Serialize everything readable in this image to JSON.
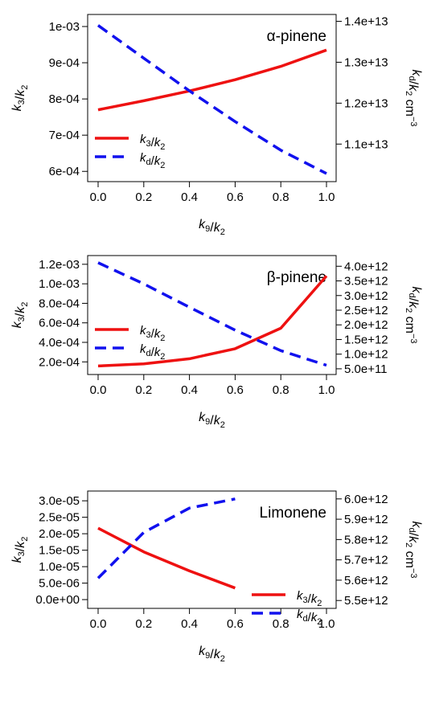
{
  "chart_data": [
    {
      "type": "line",
      "title": "α-pinene",
      "xlabel": "k9/k2",
      "ylabel": "k3/k2",
      "y2label": "kd/k2 cm−3",
      "x": [
        0.0,
        0.2,
        0.4,
        0.6,
        0.8,
        1.0
      ],
      "xlim": [
        0,
        1
      ],
      "xticks": [
        "0.0",
        "0.2",
        "0.4",
        "0.6",
        "0.8",
        "1.0"
      ],
      "ylim": [
        0.000585,
        0.00102
      ],
      "yticks": [
        0.0006,
        0.0007,
        0.0008,
        0.0009,
        0.001
      ],
      "yticklabels": [
        "6e-04",
        "7e-04",
        "8e-04",
        "9e-04",
        "1e-03"
      ],
      "y2lim": [
        10200000000000.0,
        14050000000000.0
      ],
      "y2ticks": [
        11000000000000.0,
        12000000000000.0,
        13000000000000.0,
        14000000000000.0
      ],
      "y2ticklabels": [
        "1.1e+13",
        "1.2e+13",
        "1.3e+13",
        "1.4e+13"
      ],
      "legend_loc": "bottom-left",
      "series": [
        {
          "name": "k3/k2",
          "axis": "left",
          "color": "#ee1111",
          "dash": "solid",
          "values": [
            0.00077,
            0.000795,
            0.000822,
            0.000853,
            0.00089,
            0.000935
          ]
        },
        {
          "name": "kd/k2",
          "axis": "right",
          "color": "#1111ee",
          "dash": "dashed",
          "values": [
            13900000000000.0,
            13100000000000.0,
            12300000000000.0,
            11550000000000.0,
            10850000000000.0,
            10280000000000.0
          ]
        }
      ]
    },
    {
      "type": "line",
      "title": "β-pinene",
      "xlabel": "k9/k2",
      "ylabel": "k3/k2",
      "y2label": "kd/k2 cm−3",
      "x": [
        0.0,
        0.2,
        0.4,
        0.6,
        0.8,
        1.0
      ],
      "xlim": [
        0,
        1
      ],
      "xticks": [
        "0.0",
        "0.2",
        "0.4",
        "0.6",
        "0.8",
        "1.0"
      ],
      "ylim": [
        0.00012,
        0.00124
      ],
      "yticks": [
        0.0002,
        0.0004,
        0.0006,
        0.0008,
        0.001,
        0.0012
      ],
      "yticklabels": [
        "2.0e-04",
        "4.0e-04",
        "6.0e-04",
        "8.0e-04",
        "1.0e-03",
        "1.2e-03"
      ],
      "y2lim": [
        470000000000.0,
        4200000000000.0
      ],
      "y2ticks": [
        500000000000.0,
        1000000000000.0,
        1500000000000.0,
        2000000000000.0,
        2500000000000.0,
        3000000000000.0,
        3500000000000.0,
        4000000000000.0
      ],
      "y2ticklabels": [
        "5.0e+11",
        "1.0e+12",
        "1.5e+12",
        "2.0e+12",
        "2.5e+12",
        "3.0e+12",
        "3.5e+12",
        "4.0e+12"
      ],
      "legend_loc": "bottom-left",
      "series": [
        {
          "name": "k3/k2",
          "axis": "left",
          "color": "#ee1111",
          "dash": "solid",
          "values": [
            0.000158,
            0.00018,
            0.000232,
            0.000335,
            0.000545,
            0.00108
          ]
        },
        {
          "name": "kd/k2",
          "axis": "right",
          "color": "#1111ee",
          "dash": "dashed",
          "values": [
            4120000000000.0,
            3400000000000.0,
            2600000000000.0,
            1820000000000.0,
            1120000000000.0,
            620000000000.0
          ]
        }
      ]
    },
    {
      "type": "line",
      "title": "Limonene",
      "xlabel": "k9/k2",
      "ylabel": "k3/k2",
      "y2label": "kd/k2 cm−3",
      "x": [
        0.0,
        0.2,
        0.4,
        0.6
      ],
      "xlim": [
        0,
        1
      ],
      "xticks": [
        "0.0",
        "0.2",
        "0.4",
        "0.6",
        "0.8",
        "1.0"
      ],
      "ylim": [
        -1.2e-06,
        3.15e-05
      ],
      "yticks": [
        0,
        5e-06,
        1e-05,
        1.5e-05,
        2e-05,
        2.5e-05,
        3e-05
      ],
      "yticklabels": [
        "0.0e+00",
        "5.0e-06",
        "1.0e-05",
        "1.5e-05",
        "2.0e-05",
        "2.5e-05",
        "3.0e-05"
      ],
      "y2lim": [
        5485000000000.0,
        6015000000000.0
      ],
      "y2ticks": [
        5500000000000.0,
        5600000000000.0,
        5700000000000.0,
        5800000000000.0,
        5900000000000.0,
        6000000000000.0
      ],
      "y2ticklabels": [
        "5.5e+12",
        "5.6e+12",
        "5.7e+12",
        "5.8e+12",
        "5.9e+12",
        "6.0e+12"
      ],
      "legend_loc": "bottom-right",
      "series": [
        {
          "name": "k3/k2",
          "axis": "left",
          "color": "#ee1111",
          "dash": "solid",
          "values": [
            2.17e-05,
            1.45e-05,
            8.7e-06,
            3.5e-06
          ]
        },
        {
          "name": "kd/k2",
          "axis": "right",
          "color": "#1111ee",
          "dash": "dashed",
          "values": [
            5610000000000.0,
            5835000000000.0,
            5955000000000.0,
            6000000000000.0
          ]
        }
      ]
    }
  ]
}
